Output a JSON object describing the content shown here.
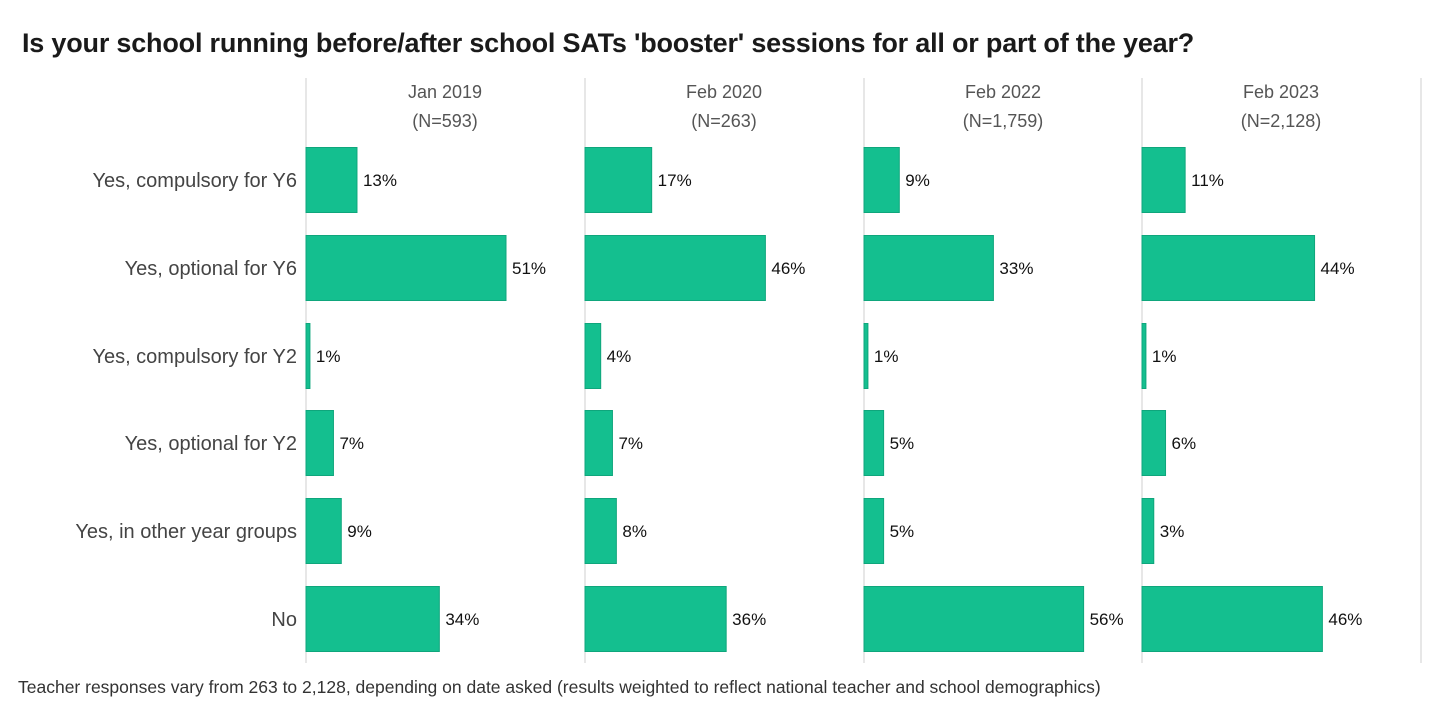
{
  "chart_data": {
    "type": "bar",
    "orientation": "horizontal",
    "title": "Is your school running before/after school SATs 'booster' sessions for all or part of the year?",
    "footnote": "Teacher responses vary from 263 to 2,128, depending on date asked (results weighted to reflect national teacher and school demographics)",
    "categories": [
      "Yes, compulsory for Y6",
      "Yes, optional for Y6",
      "Yes, compulsory for Y2",
      "Yes, optional for Y2",
      "Yes, in other year groups",
      "No"
    ],
    "value_suffix": "%",
    "xlim": [
      0,
      70
    ],
    "series": [
      {
        "name": "Jan 2019",
        "n_label": "(N=593)",
        "values": [
          13,
          51,
          1,
          7,
          9,
          34
        ]
      },
      {
        "name": "Feb 2020",
        "n_label": "(N=263)",
        "values": [
          17,
          46,
          4,
          7,
          8,
          36
        ]
      },
      {
        "name": "Feb 2022",
        "n_label": "(N=1,759)",
        "values": [
          9,
          33,
          1,
          5,
          5,
          56
        ]
      },
      {
        "name": "Feb 2023",
        "n_label": "(N=2,128)",
        "values": [
          11,
          44,
          1,
          6,
          3,
          46
        ]
      }
    ],
    "colors": {
      "bar": "#14bf8f",
      "bar_edge": "#0fa67c",
      "divider": "#cfcfcf"
    }
  }
}
